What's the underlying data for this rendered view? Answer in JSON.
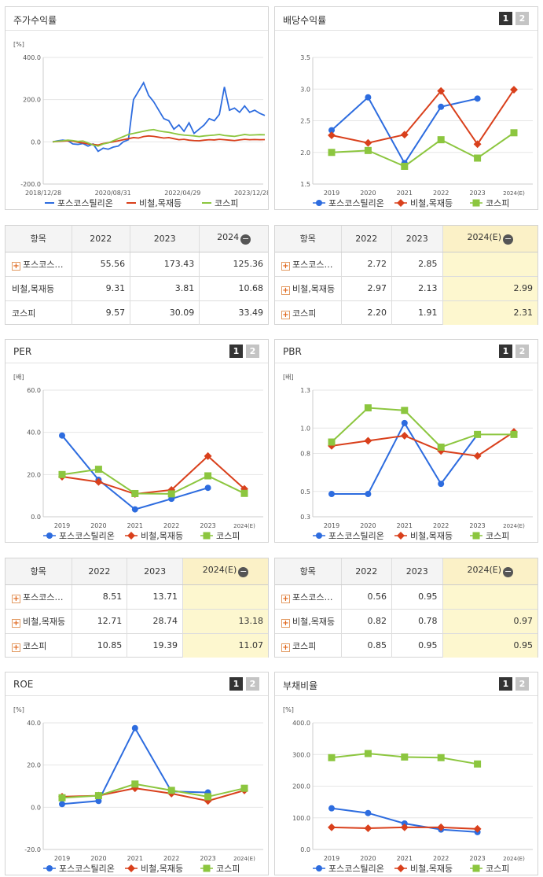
{
  "legend": {
    "s1": "포스코스틸리온",
    "s2": "비철,목재등",
    "s3": "코스피"
  },
  "colors": {
    "s1": "#2d6cdf",
    "s2": "#d9401c",
    "s3": "#8cc63f"
  },
  "tables": {
    "hdr_item": "항목",
    "stock": {
      "years": [
        "2022",
        "2023",
        "2024"
      ],
      "rows": [
        {
          "label": "포스코스…",
          "plus": true,
          "v": [
            "55.56",
            "173.43",
            "125.36"
          ]
        },
        {
          "label": "비철,목재등",
          "plus": false,
          "v": [
            "9.31",
            "3.81",
            "10.68"
          ]
        },
        {
          "label": "코스피",
          "plus": false,
          "v": [
            "9.57",
            "30.09",
            "33.49"
          ]
        }
      ]
    },
    "div": {
      "years": [
        "2022",
        "2023",
        "2024(E)"
      ],
      "rows": [
        {
          "label": "포스코스…",
          "plus": true,
          "v": [
            "2.72",
            "2.85",
            ""
          ]
        },
        {
          "label": "비철,목재등",
          "plus": true,
          "v": [
            "2.97",
            "2.13",
            "2.99"
          ]
        },
        {
          "label": "코스피",
          "plus": true,
          "v": [
            "2.20",
            "1.91",
            "2.31"
          ]
        }
      ]
    },
    "per": {
      "years": [
        "2022",
        "2023",
        "2024(E)"
      ],
      "rows": [
        {
          "label": "포스코스…",
          "plus": true,
          "v": [
            "8.51",
            "13.71",
            ""
          ]
        },
        {
          "label": "비철,목재등",
          "plus": true,
          "v": [
            "12.71",
            "28.74",
            "13.18"
          ]
        },
        {
          "label": "코스피",
          "plus": true,
          "v": [
            "10.85",
            "19.39",
            "11.07"
          ]
        }
      ]
    },
    "pbr": {
      "years": [
        "2022",
        "2023",
        "2024(E)"
      ],
      "rows": [
        {
          "label": "포스코스…",
          "plus": true,
          "v": [
            "0.56",
            "0.95",
            ""
          ]
        },
        {
          "label": "비철,목재등",
          "plus": true,
          "v": [
            "0.82",
            "0.78",
            "0.97"
          ]
        },
        {
          "label": "코스피",
          "plus": true,
          "v": [
            "0.85",
            "0.95",
            "0.95"
          ]
        }
      ]
    }
  },
  "chart_data": [
    {
      "id": "stock",
      "type": "line",
      "title": "주가수익률",
      "unit": "[%]",
      "ylim": [
        -200,
        400
      ],
      "yticks": [
        "400.0",
        "200.0",
        "0.0",
        "-200.0"
      ],
      "xticks": [
        "2018/12/28",
        "2020/08/31",
        "2022/04/29",
        "2023/12/28"
      ],
      "series": [
        {
          "name": "포스코스틸리온",
          "values": [
            0,
            5,
            8,
            5,
            -10,
            -12,
            -8,
            -20,
            -10,
            -45,
            -30,
            -35,
            -25,
            -20,
            0,
            10,
            200,
            240,
            280,
            220,
            190,
            150,
            110,
            100,
            60,
            80,
            50,
            90,
            40,
            60,
            80,
            110,
            100,
            130,
            260,
            150,
            160,
            140,
            170,
            140,
            150,
            135,
            125
          ]
        },
        {
          "name": "비철,목재등",
          "values": [
            0,
            2,
            3,
            5,
            3,
            -2,
            -5,
            -10,
            -12,
            -15,
            -8,
            -4,
            0,
            5,
            10,
            15,
            20,
            18,
            25,
            28,
            26,
            22,
            18,
            20,
            15,
            10,
            12,
            8,
            6,
            5,
            8,
            10,
            9,
            12,
            10,
            8,
            6,
            9,
            12,
            10,
            11,
            10,
            10.68
          ]
        },
        {
          "name": "코스피",
          "values": [
            0,
            3,
            5,
            8,
            6,
            2,
            4,
            -5,
            -15,
            -20,
            -10,
            -5,
            5,
            15,
            25,
            35,
            40,
            45,
            50,
            55,
            58,
            52,
            48,
            45,
            40,
            35,
            32,
            30,
            28,
            25,
            28,
            30,
            32,
            35,
            30,
            28,
            26,
            30,
            35,
            32,
            33,
            34,
            33.49
          ]
        }
      ]
    },
    {
      "id": "div",
      "type": "line",
      "title": "배당수익률",
      "unit": "",
      "ylim": [
        1.5,
        3.5
      ],
      "yticks": [
        "3.5",
        "3.0",
        "2.5",
        "2.0",
        "1.5"
      ],
      "categories": [
        "2019",
        "2020",
        "2021",
        "2022",
        "2023",
        "2024(E)"
      ],
      "series": [
        {
          "name": "포스코스틸리온",
          "values": [
            2.35,
            2.87,
            1.83,
            2.72,
            2.85,
            null
          ]
        },
        {
          "name": "비철,목재등",
          "values": [
            2.27,
            2.15,
            2.28,
            2.97,
            2.13,
            2.99
          ]
        },
        {
          "name": "코스피",
          "values": [
            2.0,
            2.03,
            1.78,
            2.2,
            1.91,
            2.31
          ]
        }
      ]
    },
    {
      "id": "per",
      "type": "line",
      "title": "PER",
      "unit": "[배]",
      "ylim": [
        0,
        60
      ],
      "yticks": [
        "60.0",
        "40.0",
        "20.0",
        "0.0"
      ],
      "categories": [
        "2019",
        "2020",
        "2021",
        "2022",
        "2023",
        "2024(E)"
      ],
      "series": [
        {
          "name": "포스코스틸리온",
          "values": [
            38.5,
            17.5,
            3.5,
            8.51,
            13.71,
            null
          ]
        },
        {
          "name": "비철,목재등",
          "values": [
            19.0,
            16.5,
            10.8,
            12.71,
            28.74,
            13.18
          ]
        },
        {
          "name": "코스피",
          "values": [
            20.0,
            22.5,
            11.0,
            10.85,
            19.39,
            11.07
          ]
        }
      ]
    },
    {
      "id": "pbr",
      "type": "line",
      "title": "PBR",
      "unit": "[배]",
      "ylim": [
        0.3,
        1.3
      ],
      "yticks": [
        "1.3",
        "1.0",
        "0.8",
        "0.5",
        "0.3"
      ],
      "categories": [
        "2019",
        "2020",
        "2021",
        "2022",
        "2023",
        "2024(E)"
      ],
      "series": [
        {
          "name": "포스코스틸리온",
          "values": [
            0.48,
            0.48,
            1.04,
            0.56,
            0.95,
            null
          ]
        },
        {
          "name": "비철,목재등",
          "values": [
            0.86,
            0.9,
            0.94,
            0.82,
            0.78,
            0.97
          ]
        },
        {
          "name": "코스피",
          "values": [
            0.89,
            1.16,
            1.14,
            0.85,
            0.95,
            0.95
          ]
        }
      ]
    },
    {
      "id": "roe",
      "type": "line",
      "title": "ROE",
      "unit": "[%]",
      "ylim": [
        -20,
        40
      ],
      "yticks": [
        "40.0",
        "20.0",
        "0.0",
        "-20.0"
      ],
      "categories": [
        "2019",
        "2020",
        "2021",
        "2022",
        "2023",
        "2024(E)"
      ],
      "series": [
        {
          "name": "포스코스틸리온",
          "values": [
            1.5,
            3.0,
            37.5,
            7.5,
            7.0,
            null
          ]
        },
        {
          "name": "비철,목재등",
          "values": [
            5.0,
            5.5,
            9.0,
            6.5,
            3.0,
            8.0
          ]
        },
        {
          "name": "코스피",
          "values": [
            4.5,
            5.5,
            11.0,
            8.0,
            5.0,
            9.0
          ]
        }
      ]
    },
    {
      "id": "debt",
      "type": "line",
      "title": "부채비율",
      "unit": "[%]",
      "ylim": [
        0,
        400
      ],
      "yticks": [
        "400.0",
        "300.0",
        "200.0",
        "100.0",
        "0.0"
      ],
      "categories": [
        "2019",
        "2020",
        "2021",
        "2022",
        "2023",
        "2024(E)"
      ],
      "series": [
        {
          "name": "포스코스틸리온",
          "values": [
            130,
            115,
            82,
            63,
            55,
            null
          ]
        },
        {
          "name": "비철,목재등",
          "values": [
            70,
            67,
            70,
            70,
            65,
            null
          ]
        },
        {
          "name": "코스피",
          "values": [
            290,
            303,
            292,
            290,
            270,
            null
          ]
        }
      ]
    }
  ]
}
